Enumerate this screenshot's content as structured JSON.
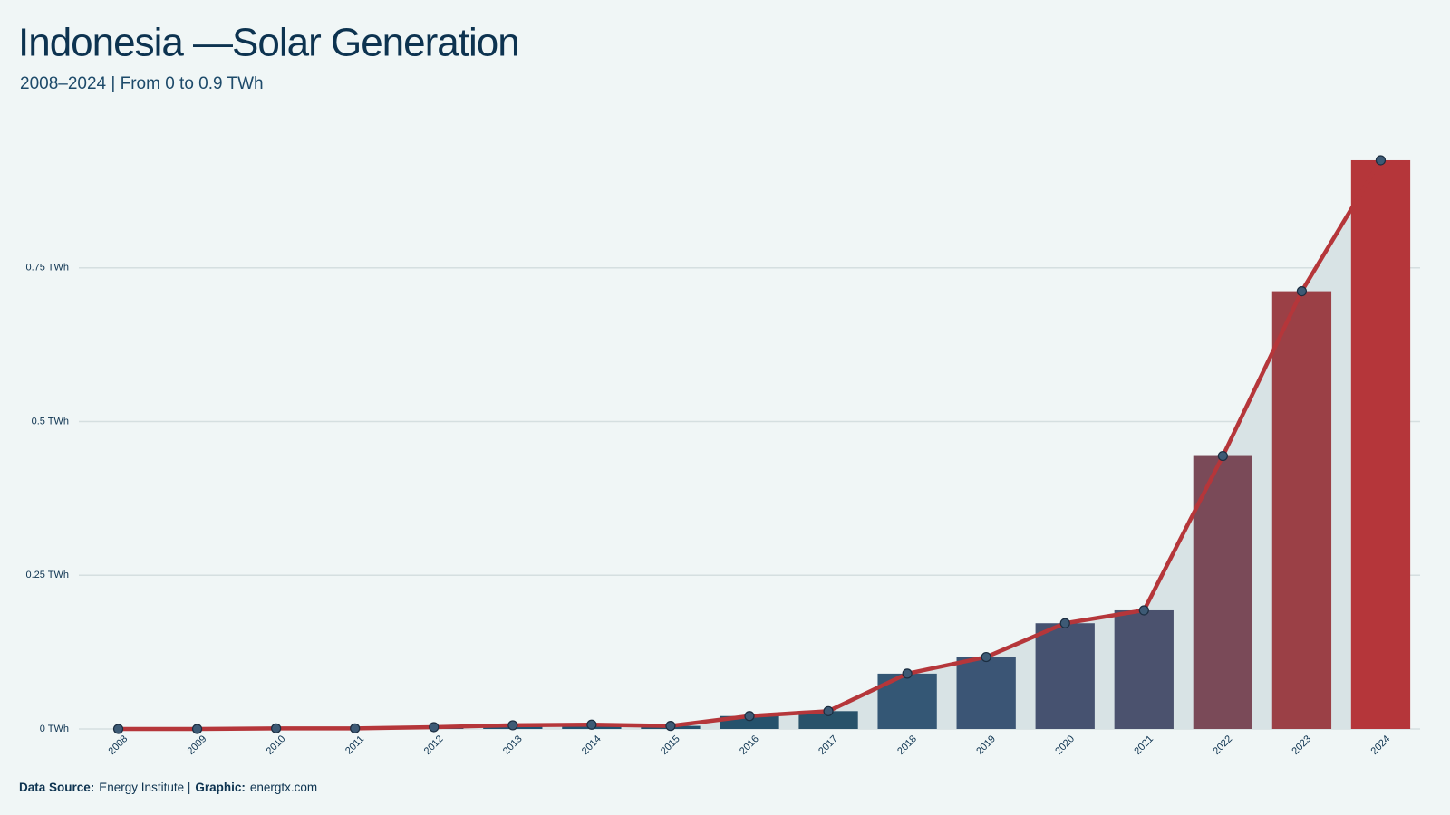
{
  "chart_data": {
    "type": "bar",
    "title": "Indonesia —Solar Generation",
    "subtitle": "2008–2024 | From 0 to 0.9 TWh",
    "categories": [
      "2008",
      "2009",
      "2010",
      "2011",
      "2012",
      "2013",
      "2014",
      "2015",
      "2016",
      "2017",
      "2018",
      "2019",
      "2020",
      "2021",
      "2022",
      "2023",
      "2024"
    ],
    "values": [
      0,
      0,
      0.001,
      0.001,
      0.003,
      0.006,
      0.007,
      0.005,
      0.021,
      0.029,
      0.09,
      0.117,
      0.172,
      0.193,
      0.444,
      0.712,
      0.925
    ],
    "colors": [
      "#1a5276",
      "#1a5276",
      "#1a5276",
      "#1a5276",
      "#1c5274",
      "#1e5272",
      "#205270",
      "#22526e",
      "#25526c",
      "#28526a",
      "#345775",
      "#3b5575",
      "#465270",
      "#4b526e",
      "#7a4a58",
      "#9b4046",
      "#b5363a"
    ],
    "line": true,
    "line_color": "#b5363a",
    "area": true,
    "area_color": "#d8e3e5",
    "point_color": "#3d5a75",
    "ylim": [
      0,
      0.95
    ],
    "yticks": [
      {
        "value": 0,
        "label": "0 TWh"
      },
      {
        "value": 0.25,
        "label": "0.25 TWh"
      },
      {
        "value": 0.5,
        "label": "0.5 TWh"
      },
      {
        "value": 0.75,
        "label": "0.75 TWh"
      }
    ],
    "grid": true,
    "footer": [
      {
        "text": "Data Source:",
        "bold": true
      },
      {
        "text": "Energy Institute |",
        "bold": false
      },
      {
        "text": "Graphic:",
        "bold": true
      },
      {
        "text": "energtx.com",
        "bold": false
      }
    ]
  }
}
